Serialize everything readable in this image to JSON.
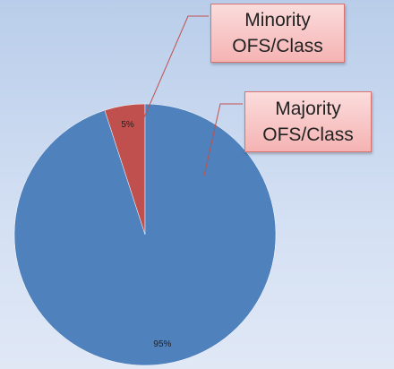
{
  "chart_data": {
    "type": "pie",
    "categories": [
      "Minority OFS/Class",
      "Majority OFS/Class"
    ],
    "values": [
      5,
      95
    ],
    "value_labels": [
      "5%",
      "95%"
    ],
    "colors": [
      "#c0504d",
      "#4f81bd"
    ]
  }
}
